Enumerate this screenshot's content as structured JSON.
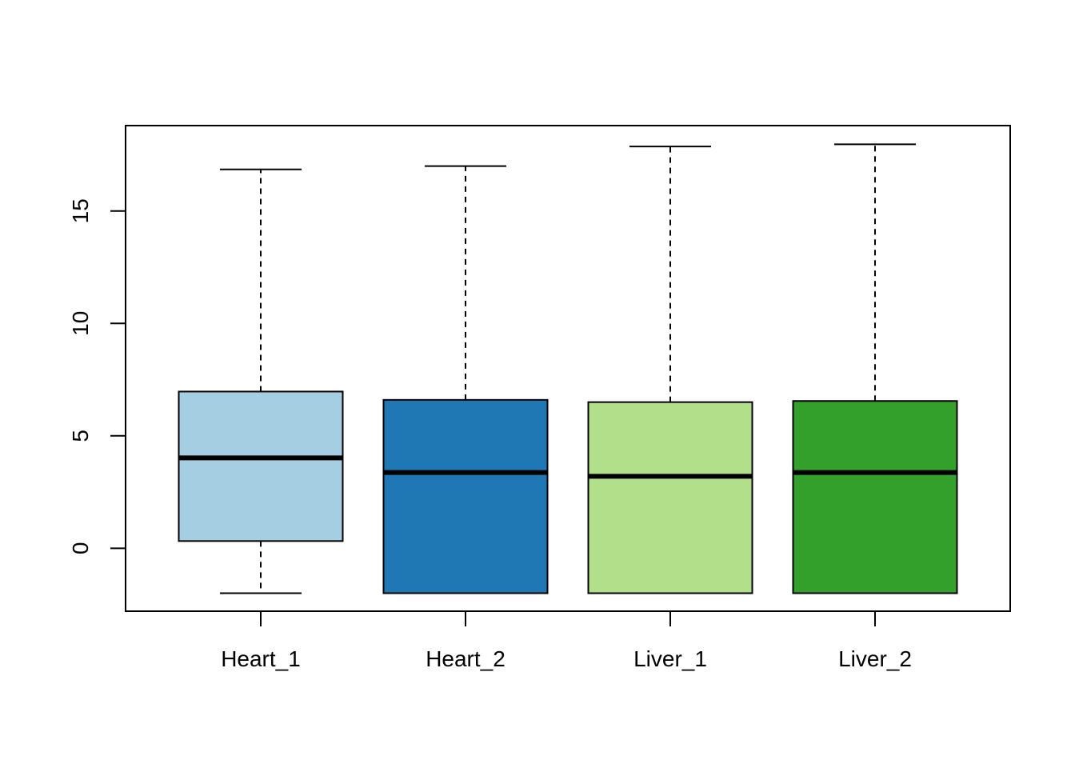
{
  "chart_data": {
    "type": "boxplot",
    "categories": [
      "Heart_1",
      "Heart_2",
      "Liver_1",
      "Liver_2"
    ],
    "boxes": [
      {
        "category": "Heart_1",
        "whisker_low": -2.0,
        "q1": 0.32,
        "median": 4.02,
        "q3": 6.97,
        "whisker_high": 16.85,
        "color": "#a6cee3"
      },
      {
        "category": "Heart_2",
        "whisker_low": -2.0,
        "q1": -2.0,
        "median": 3.37,
        "q3": 6.6,
        "whisker_high": 17.0,
        "color": "#1f78b4"
      },
      {
        "category": "Liver_1",
        "whisker_low": -2.0,
        "q1": -2.0,
        "median": 3.2,
        "q3": 6.5,
        "whisker_high": 17.87,
        "color": "#b2df8a"
      },
      {
        "category": "Liver_2",
        "whisker_low": -2.0,
        "q1": -2.0,
        "median": 3.37,
        "q3": 6.55,
        "whisker_high": 17.97,
        "color": "#33a02c"
      }
    ],
    "y_ticks": [
      0,
      5,
      10,
      15
    ],
    "ylim": [
      -2.8,
      18.8
    ],
    "title": "",
    "xlabel": "",
    "ylabel": "",
    "grid": false,
    "legend": "none"
  }
}
